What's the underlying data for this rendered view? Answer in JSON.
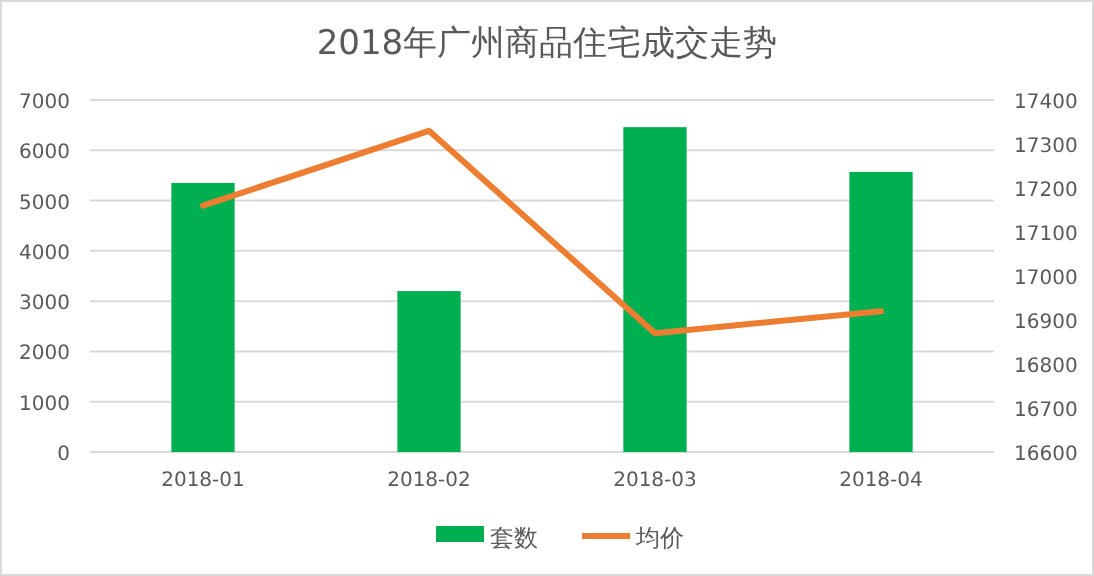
{
  "chart_data": {
    "type": "bar",
    "title": "2018年广州商品住宅成交走势",
    "categories": [
      "2018-01",
      "2018-02",
      "2018-03",
      "2018-04"
    ],
    "series": [
      {
        "name": "套数",
        "color": "#00b050",
        "values": [
          5350,
          3200,
          6460,
          5570
        ]
      },
      {
        "name": "均价",
        "type": "line",
        "axis": "y2",
        "color": "#ed7d31",
        "values": [
          17160,
          17330,
          16870,
          16920
        ]
      }
    ],
    "ylim": [
      0,
      7000
    ],
    "yticks": [
      0,
      1000,
      2000,
      3000,
      4000,
      5000,
      6000,
      7000
    ],
    "y2lim": [
      16600,
      17400
    ],
    "y2ticks": [
      16600,
      16700,
      16800,
      16900,
      17000,
      17100,
      17200,
      17300,
      17400
    ],
    "grid": "y",
    "legend": "bottom",
    "marker": "none",
    "line_style": "solid"
  }
}
